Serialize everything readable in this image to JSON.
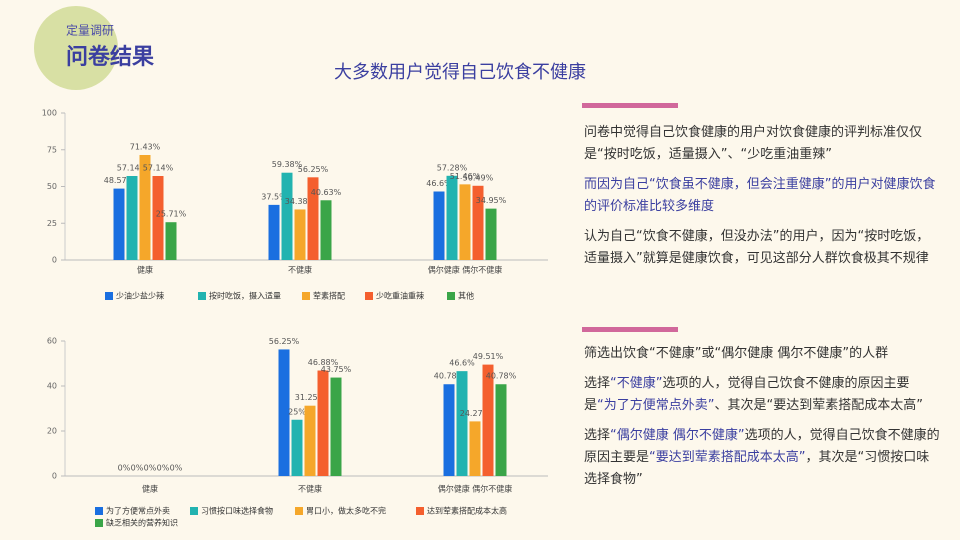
{
  "header": {
    "subtitle": "定量调研",
    "title": "问卷结果"
  },
  "chart_data": [
    {
      "type": "bar",
      "title": "大多数用户觉得自己饮食不健康",
      "categories": [
        "健康",
        "不健康",
        "偶尔健康 偶尔不健康"
      ],
      "ylim": [
        0,
        100
      ],
      "yticks": [
        0,
        25,
        50,
        75,
        100
      ],
      "grid": false,
      "series": [
        {
          "name": "少油少盐少辣",
          "color": "#1a6fe0",
          "values": [
            48.57,
            37.5,
            46.6
          ],
          "value_labels": [
            "48.57%",
            "37.5%",
            "46.6%"
          ]
        },
        {
          "name": "按时吃饭，摄入适量",
          "color": "#22b3b0",
          "values": [
            57.14,
            59.38,
            57.28
          ],
          "value_labels": [
            "57.14%",
            "59.38%",
            "57.28%"
          ]
        },
        {
          "name": "荤素搭配",
          "color": "#f5a72a",
          "values": [
            71.43,
            34.38,
            51.46
          ],
          "value_labels": [
            "71.43%",
            "34.38%",
            "51.46%"
          ]
        },
        {
          "name": "少吃重油重辣",
          "color": "#f45f2e",
          "values": [
            57.14,
            56.25,
            50.49
          ],
          "value_labels": [
            "57.14%",
            "56.25%",
            "50.49%"
          ]
        },
        {
          "name": "其他",
          "color": "#3aa548",
          "values": [
            25.71,
            40.63,
            34.95
          ],
          "value_labels": [
            "25.71%",
            "40.63%",
            "34.95%"
          ]
        }
      ]
    },
    {
      "type": "bar",
      "categories": [
        "健康",
        "不健康",
        "偶尔健康 偶尔不健康"
      ],
      "ylim": [
        0,
        60
      ],
      "yticks": [
        0,
        20,
        40,
        60
      ],
      "grid": false,
      "series": [
        {
          "name": "为了方便常点外卖",
          "color": "#1a6fe0",
          "values": [
            0,
            56.25,
            40.78
          ],
          "value_labels": [
            "0%",
            "56.25%",
            "40.78%"
          ]
        },
        {
          "name": "习惯按口味选择食物",
          "color": "#22b3b0",
          "values": [
            0,
            25,
            46.6
          ],
          "value_labels": [
            "0%",
            "25%",
            "46.6%"
          ]
        },
        {
          "name": "胃口小，做太多吃不完",
          "color": "#f5a72a",
          "values": [
            0,
            31.25,
            24.27
          ],
          "value_labels": [
            "0%",
            "31.25%",
            "24.27%"
          ]
        },
        {
          "name": "达到荤素搭配成本太高",
          "color": "#f45f2e",
          "values": [
            0,
            46.88,
            49.51
          ],
          "value_labels": [
            "0%",
            "46.88%",
            "49.51%"
          ]
        },
        {
          "name": "缺乏相关的营养知识",
          "color": "#3aa548",
          "values": [
            0,
            43.75,
            40.78
          ],
          "value_labels": [
            "0%",
            "43.75%",
            "40.78%"
          ]
        }
      ]
    }
  ],
  "notes": [
    [
      [
        {
          "text": "问卷中觉得自己饮食健康的用户对饮食健康的评判标准仅仅是“按时吃饭，适量摄入”、“少吃重油重辣”",
          "color": "#333333"
        }
      ],
      [
        {
          "text": "而因为自己“饮食虽不健康，但会注重健康”的用户对健康饮食的评价标准比较多维度",
          "color": "#3b3fa0"
        }
      ],
      [
        {
          "text": "认为自己“饮食不健康，但没办法”的用户，因为“按时吃饭，适量摄入”就算是健康饮食，可见这部分人群饮食极其不规律",
          "color": "#333333"
        }
      ]
    ],
    [
      [
        {
          "text": "筛选出饮食“不健康”或“偶尔健康 偶尔不健康”的人群",
          "color": "#333333"
        }
      ],
      [
        {
          "text": "选择",
          "color": "#333333"
        },
        {
          "text": "“不健康”",
          "color": "#3b3fa0"
        },
        {
          "text": "选项的人，觉得自己饮食不健康的原因主要是",
          "color": "#333333"
        },
        {
          "text": "“为了方便常点外卖”",
          "color": "#3b3fa0"
        },
        {
          "text": "、其次是“要达到荤素搭配成本太高”",
          "color": "#333333"
        }
      ],
      [
        {
          "text": "选择",
          "color": "#333333"
        },
        {
          "text": "“偶尔健康 偶尔不健康”",
          "color": "#3b3fa0"
        },
        {
          "text": "选项的人，觉得自己饮食不健康的原因主要是",
          "color": "#333333"
        },
        {
          "text": "“要达到荤素搭配成本太高”",
          "color": "#3b3fa0"
        },
        {
          "text": "，其次是“习惯按口味选择食物”",
          "color": "#333333"
        }
      ]
    ]
  ]
}
